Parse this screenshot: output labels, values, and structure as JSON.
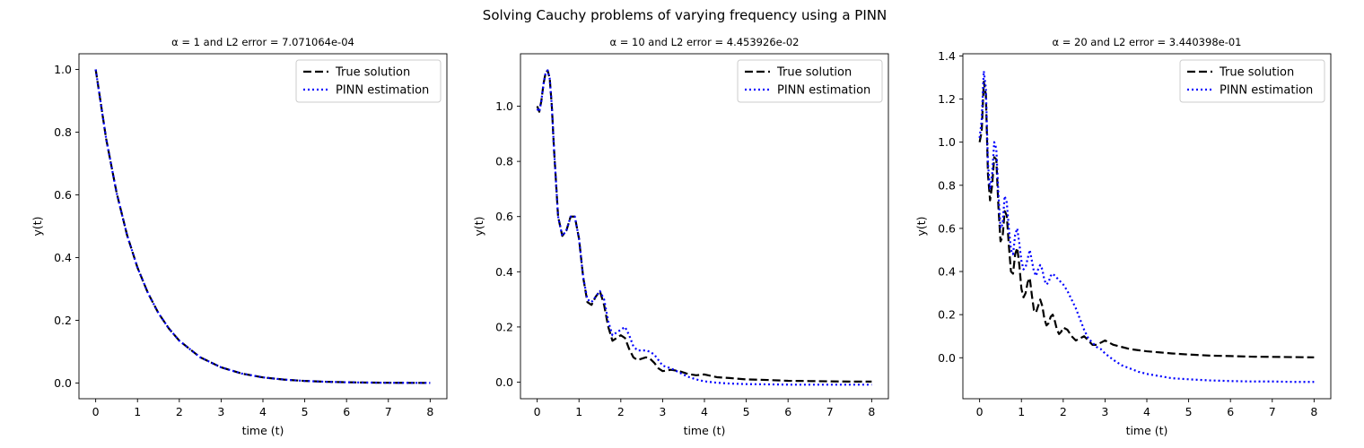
{
  "suptitle": "Solving Cauchy problems of varying frequency using a PINN",
  "colors": {
    "true": "#000000",
    "pinn": "#0000ff"
  },
  "chart_data": [
    {
      "type": "line",
      "title": "α = 1 and L2 error = 7.071064e-04",
      "xlabel": "time (t)",
      "ylabel": "y(t)",
      "xlim": [
        -0.4,
        8.4
      ],
      "ylim": [
        -0.05,
        1.05
      ],
      "xticks": [
        0,
        1,
        2,
        3,
        4,
        5,
        6,
        7,
        8
      ],
      "yticks": [
        0.0,
        0.2,
        0.4,
        0.6,
        0.8,
        1.0
      ],
      "ytick_labels": [
        "0.0",
        "0.2",
        "0.4",
        "0.6",
        "0.8",
        "1.0"
      ],
      "legend_location": "top-right",
      "series": [
        {
          "name": "True solution",
          "style": "dashed",
          "color": "#000000",
          "x": [
            0,
            0.25,
            0.5,
            0.75,
            1,
            1.25,
            1.5,
            1.75,
            2,
            2.5,
            3,
            3.5,
            4,
            4.5,
            5,
            5.5,
            6,
            6.5,
            7,
            7.5,
            8
          ],
          "y": [
            1.0,
            0.779,
            0.607,
            0.472,
            0.368,
            0.287,
            0.223,
            0.174,
            0.135,
            0.082,
            0.05,
            0.03,
            0.018,
            0.011,
            0.0067,
            0.0041,
            0.0025,
            0.0015,
            0.0009,
            0.0006,
            0.0003
          ]
        },
        {
          "name": "PINN estimation",
          "style": "dotted",
          "color": "#0000ff",
          "x": [
            0,
            0.25,
            0.5,
            0.75,
            1,
            1.25,
            1.5,
            1.75,
            2,
            2.5,
            3,
            3.5,
            4,
            4.5,
            5,
            5.5,
            6,
            6.5,
            7,
            7.5,
            8
          ],
          "y": [
            1.0,
            0.779,
            0.607,
            0.472,
            0.368,
            0.287,
            0.223,
            0.174,
            0.135,
            0.082,
            0.05,
            0.03,
            0.018,
            0.011,
            0.0067,
            0.0041,
            0.0025,
            0.0015,
            0.0009,
            0.0006,
            0.0003
          ]
        }
      ]
    },
    {
      "type": "line",
      "title": "α = 10 and L2 error = 4.453926e-02",
      "xlabel": "time (t)",
      "ylabel": "y(t)",
      "xlim": [
        -0.4,
        8.4
      ],
      "ylim": [
        -0.06,
        1.19
      ],
      "xticks": [
        0,
        1,
        2,
        3,
        4,
        5,
        6,
        7,
        8
      ],
      "yticks": [
        0.0,
        0.2,
        0.4,
        0.6,
        0.8,
        1.0
      ],
      "ytick_labels": [
        "0.0",
        "0.2",
        "0.4",
        "0.6",
        "0.8",
        "1.0"
      ],
      "legend_location": "top-right",
      "series": [
        {
          "name": "True solution",
          "style": "dashed",
          "color": "#000000",
          "x": [
            0,
            0.05,
            0.1,
            0.15,
            0.2,
            0.25,
            0.3,
            0.35,
            0.4,
            0.5,
            0.6,
            0.7,
            0.8,
            0.9,
            1.0,
            1.1,
            1.2,
            1.3,
            1.4,
            1.5,
            1.6,
            1.7,
            1.8,
            1.9,
            2.0,
            2.1,
            2.2,
            2.3,
            2.4,
            2.5,
            2.6,
            2.7,
            2.8,
            2.9,
            3.0,
            3.2,
            3.4,
            3.6,
            3.8,
            4.0,
            4.3,
            4.6,
            5.0,
            5.5,
            6,
            6.5,
            7,
            7.5,
            8
          ],
          "y": [
            1.0,
            0.98,
            1.02,
            1.08,
            1.12,
            1.13,
            1.1,
            1.0,
            0.85,
            0.6,
            0.53,
            0.55,
            0.6,
            0.6,
            0.52,
            0.38,
            0.29,
            0.28,
            0.31,
            0.33,
            0.28,
            0.2,
            0.15,
            0.16,
            0.17,
            0.16,
            0.12,
            0.09,
            0.08,
            0.085,
            0.09,
            0.085,
            0.07,
            0.05,
            0.04,
            0.045,
            0.04,
            0.03,
            0.025,
            0.028,
            0.018,
            0.015,
            0.01,
            0.008,
            0.005,
            0.004,
            0.003,
            0.002,
            0.002
          ]
        },
        {
          "name": "PINN estimation",
          "style": "dotted",
          "color": "#0000ff",
          "x": [
            0,
            0.05,
            0.1,
            0.15,
            0.2,
            0.25,
            0.3,
            0.35,
            0.4,
            0.5,
            0.6,
            0.7,
            0.8,
            0.9,
            1.0,
            1.1,
            1.2,
            1.3,
            1.4,
            1.5,
            1.6,
            1.7,
            1.8,
            1.9,
            2.0,
            2.1,
            2.2,
            2.3,
            2.4,
            2.5,
            2.6,
            2.7,
            2.8,
            2.9,
            3.0,
            3.2,
            3.4,
            3.6,
            3.8,
            4.0,
            4.3,
            4.6,
            5.0,
            5.5,
            6,
            6.5,
            7,
            7.5,
            8
          ],
          "y": [
            0.99,
            0.98,
            1.02,
            1.08,
            1.12,
            1.13,
            1.1,
            1.0,
            0.85,
            0.6,
            0.53,
            0.55,
            0.6,
            0.6,
            0.52,
            0.38,
            0.3,
            0.29,
            0.31,
            0.33,
            0.3,
            0.22,
            0.17,
            0.18,
            0.19,
            0.2,
            0.17,
            0.13,
            0.115,
            0.115,
            0.115,
            0.11,
            0.1,
            0.08,
            0.06,
            0.05,
            0.035,
            0.02,
            0.01,
            0.003,
            -0.002,
            -0.005,
            -0.007,
            -0.008,
            -0.009,
            -0.009,
            -0.009,
            -0.009,
            -0.009
          ]
        }
      ]
    },
    {
      "type": "line",
      "title": "α = 20 and L2 error = 3.440398e-01",
      "xlabel": "time (t)",
      "ylabel": "y(t)",
      "xlim": [
        -0.4,
        8.4
      ],
      "ylim": [
        -0.19,
        1.41
      ],
      "xticks": [
        0,
        1,
        2,
        3,
        4,
        5,
        6,
        7,
        8
      ],
      "yticks": [
        0.0,
        0.2,
        0.4,
        0.6,
        0.8,
        1.0,
        1.2,
        1.4
      ],
      "ytick_labels": [
        "0.0",
        "0.2",
        "0.4",
        "0.6",
        "0.8",
        "1.0",
        "1.2",
        "1.4"
      ],
      "legend_location": "top-right",
      "series": [
        {
          "name": "True solution",
          "style": "dashed",
          "color": "#000000",
          "x": [
            0,
            0.05,
            0.1,
            0.15,
            0.2,
            0.25,
            0.3,
            0.35,
            0.4,
            0.45,
            0.5,
            0.55,
            0.6,
            0.65,
            0.7,
            0.75,
            0.8,
            0.85,
            0.9,
            0.95,
            1.0,
            1.05,
            1.1,
            1.15,
            1.2,
            1.25,
            1.3,
            1.35,
            1.4,
            1.45,
            1.5,
            1.55,
            1.6,
            1.65,
            1.7,
            1.75,
            1.8,
            1.85,
            1.9,
            1.95,
            2.0,
            2.1,
            2.2,
            2.3,
            2.4,
            2.5,
            2.6,
            2.7,
            2.8,
            2.9,
            3.0,
            3.2,
            3.4,
            3.6,
            3.8,
            4.0,
            4.3,
            4.6,
            5.0,
            5.5,
            6,
            6.5,
            7,
            7.5,
            8
          ],
          "y": [
            1.0,
            1.05,
            1.28,
            1.22,
            0.85,
            0.73,
            0.8,
            0.93,
            0.92,
            0.7,
            0.54,
            0.56,
            0.68,
            0.66,
            0.52,
            0.4,
            0.39,
            0.48,
            0.51,
            0.43,
            0.32,
            0.28,
            0.3,
            0.35,
            0.37,
            0.29,
            0.22,
            0.21,
            0.24,
            0.27,
            0.24,
            0.18,
            0.15,
            0.16,
            0.19,
            0.2,
            0.17,
            0.13,
            0.11,
            0.12,
            0.14,
            0.13,
            0.1,
            0.08,
            0.09,
            0.1,
            0.08,
            0.06,
            0.06,
            0.07,
            0.08,
            0.06,
            0.05,
            0.04,
            0.035,
            0.03,
            0.025,
            0.02,
            0.015,
            0.01,
            0.008,
            0.005,
            0.004,
            0.003,
            0.002
          ]
        },
        {
          "name": "PINN estimation",
          "style": "dotted",
          "color": "#0000ff",
          "x": [
            0,
            0.05,
            0.1,
            0.15,
            0.2,
            0.25,
            0.3,
            0.35,
            0.4,
            0.45,
            0.5,
            0.55,
            0.6,
            0.65,
            0.7,
            0.75,
            0.8,
            0.85,
            0.9,
            0.95,
            1.0,
            1.05,
            1.1,
            1.15,
            1.2,
            1.25,
            1.3,
            1.35,
            1.4,
            1.45,
            1.5,
            1.55,
            1.6,
            1.65,
            1.7,
            1.75,
            1.8,
            1.85,
            1.9,
            1.95,
            2.0,
            2.1,
            2.2,
            2.3,
            2.4,
            2.5,
            2.6,
            2.7,
            2.8,
            2.9,
            3.0,
            3.2,
            3.4,
            3.6,
            3.8,
            4.0,
            4.3,
            4.6,
            5.0,
            5.5,
            6,
            6.5,
            7,
            7.5,
            8
          ],
          "y": [
            1.02,
            1.1,
            1.33,
            1.25,
            0.9,
            0.78,
            0.85,
            1.0,
            0.97,
            0.76,
            0.6,
            0.62,
            0.75,
            0.72,
            0.6,
            0.5,
            0.48,
            0.57,
            0.6,
            0.53,
            0.45,
            0.41,
            0.42,
            0.46,
            0.5,
            0.45,
            0.4,
            0.38,
            0.41,
            0.43,
            0.41,
            0.36,
            0.34,
            0.35,
            0.38,
            0.39,
            0.38,
            0.37,
            0.36,
            0.35,
            0.34,
            0.31,
            0.27,
            0.23,
            0.18,
            0.13,
            0.09,
            0.07,
            0.05,
            0.04,
            0.02,
            -0.01,
            -0.035,
            -0.05,
            -0.065,
            -0.075,
            -0.085,
            -0.095,
            -0.1,
            -0.105,
            -0.108,
            -0.11,
            -0.11,
            -0.112,
            -0.112
          ]
        }
      ]
    }
  ]
}
